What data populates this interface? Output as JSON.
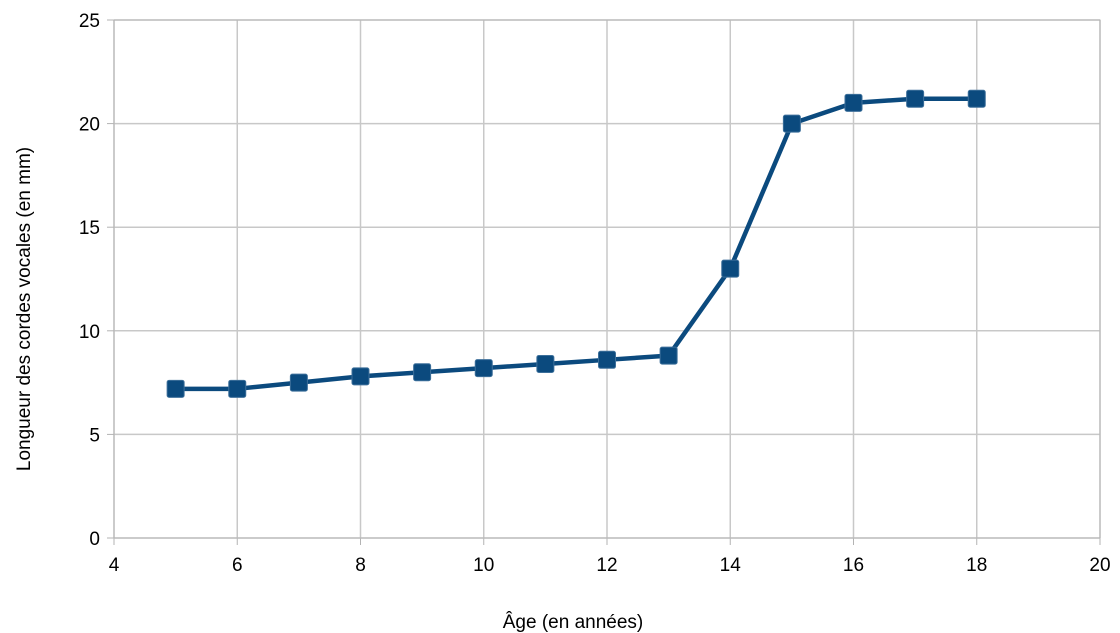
{
  "chart_data": {
    "type": "line",
    "title": "",
    "xlabel": "Âge (en années)",
    "ylabel": "Longueur des cordes vocales (en mm)",
    "xlim": [
      4,
      20
    ],
    "ylim": [
      0,
      25
    ],
    "x_ticks": [
      4,
      6,
      8,
      10,
      12,
      14,
      16,
      18,
      20
    ],
    "y_ticks": [
      0,
      5,
      10,
      15,
      20,
      25
    ],
    "grid": true,
    "legend": "none",
    "marker": "square",
    "colors": {
      "series": "#0b4a7e",
      "grid": "#c8c8c8",
      "axis": "#b3b3b3"
    },
    "series": [
      {
        "x": [
          5,
          6,
          7,
          8,
          9,
          10,
          11,
          12,
          13,
          14,
          15,
          16,
          17,
          18
        ],
        "values": [
          7.2,
          7.2,
          7.5,
          7.8,
          8.0,
          8.2,
          8.4,
          8.6,
          8.8,
          13.0,
          20.0,
          21.0,
          21.2,
          21.2
        ]
      }
    ]
  }
}
